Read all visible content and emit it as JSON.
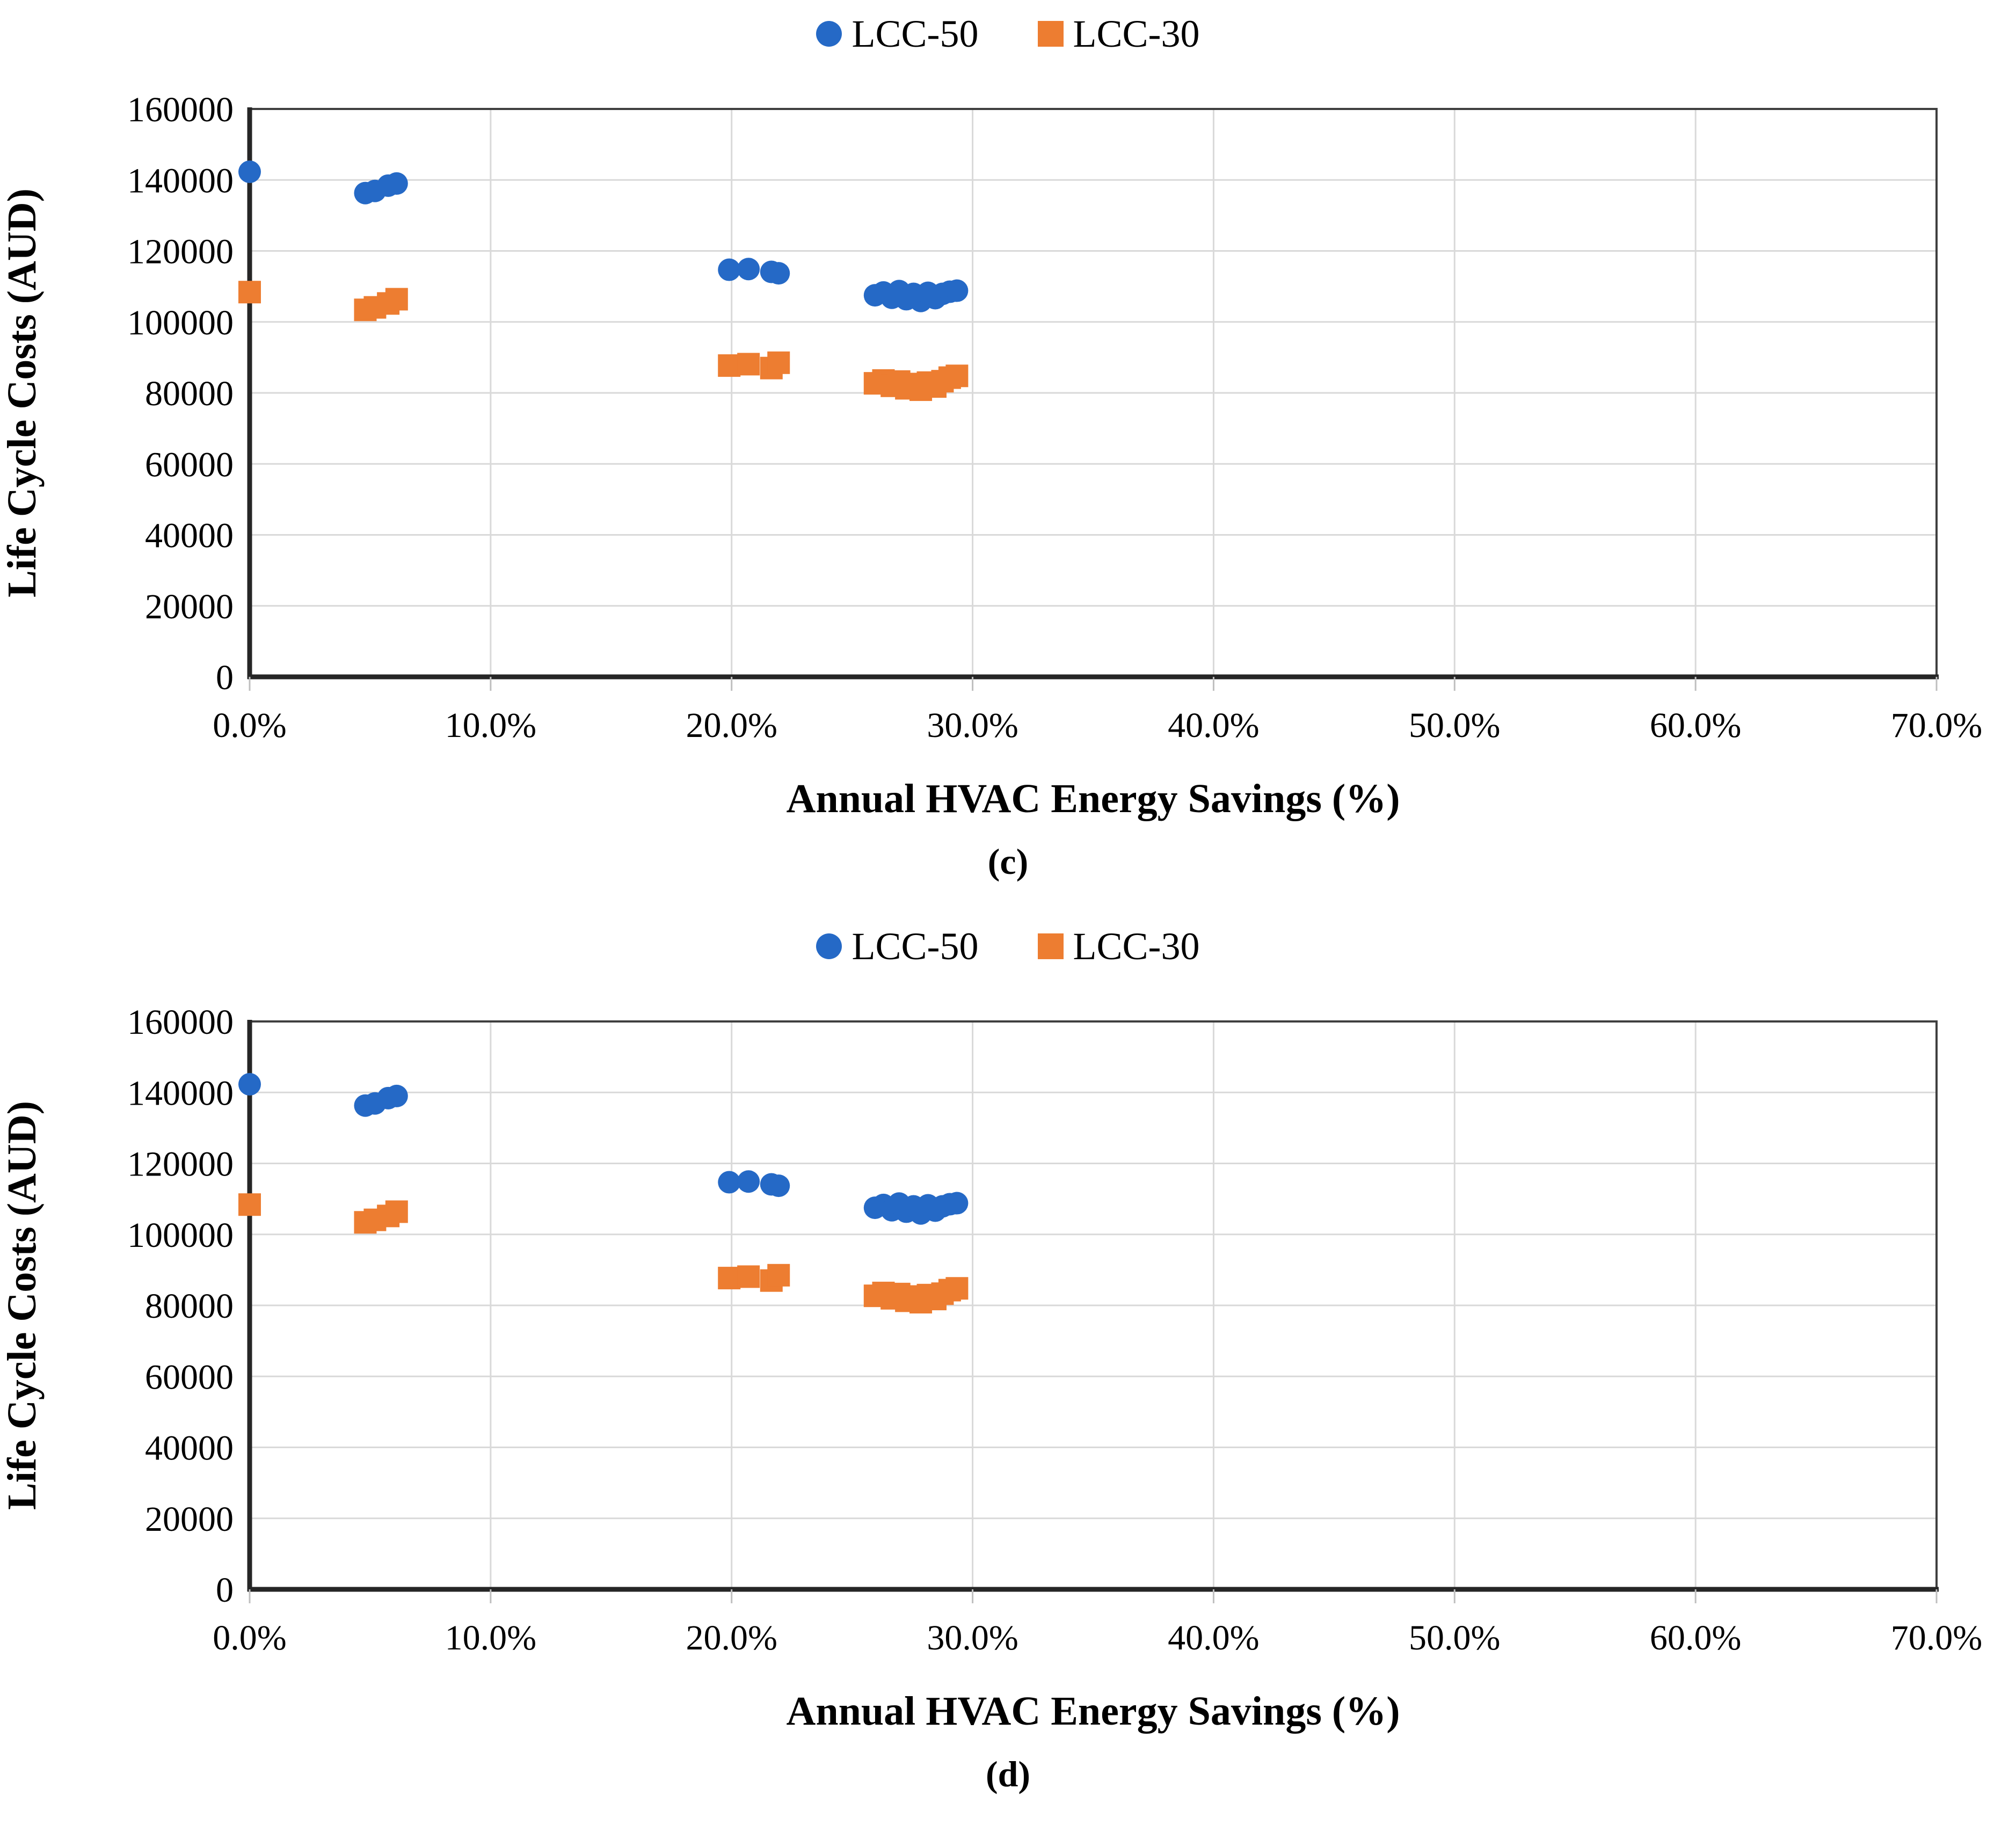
{
  "figures": [
    {
      "caption": "(c)"
    },
    {
      "caption": "(d)"
    }
  ],
  "chart_data": [
    {
      "type": "scatter",
      "title": "",
      "xlabel": "Annual HVAC Energy Savings (%)",
      "ylabel": "Life Cycle Costs (AUD)",
      "xlim_percent": [
        0,
        70
      ],
      "ylim": [
        0,
        160000
      ],
      "xticks_percent": [
        0,
        10,
        20,
        30,
        40,
        50,
        60,
        70
      ],
      "xtick_labels": [
        "0.0%",
        "10.0%",
        "20.0%",
        "30.0%",
        "40.0%",
        "50.0%",
        "60.0%",
        "70.0%"
      ],
      "yticks": [
        0,
        20000,
        40000,
        60000,
        80000,
        100000,
        120000,
        140000,
        160000
      ],
      "ytick_labels": [
        "0",
        "20000",
        "40000",
        "60000",
        "80000",
        "100000",
        "120000",
        "140000",
        "160000"
      ],
      "grid": true,
      "legend_position": "top",
      "gridline_color": "#d9d9d9",
      "axis_color": "#262626",
      "series": [
        {
          "name": "LCC-50",
          "marker": "circle",
          "color": "#2569C6",
          "points": [
            [
              0.0,
              142300
            ],
            [
              4.8,
              136300
            ],
            [
              5.2,
              136900
            ],
            [
              5.75,
              138400
            ],
            [
              6.1,
              139000
            ],
            [
              19.9,
              114700
            ],
            [
              20.7,
              114900
            ],
            [
              21.65,
              114100
            ],
            [
              21.95,
              113700
            ],
            [
              25.95,
              107500
            ],
            [
              26.3,
              108300
            ],
            [
              26.65,
              106800
            ],
            [
              26.95,
              108700
            ],
            [
              27.25,
              106400
            ],
            [
              27.55,
              107900
            ],
            [
              27.85,
              105900
            ],
            [
              28.15,
              108200
            ],
            [
              28.45,
              106700
            ],
            [
              28.75,
              107900
            ],
            [
              29.05,
              108500
            ],
            [
              29.35,
              108800
            ]
          ]
        },
        {
          "name": "LCC-30",
          "marker": "square",
          "color": "#ED7D31",
          "points": [
            [
              0.0,
              108400
            ],
            [
              4.8,
              103400
            ],
            [
              5.2,
              104100
            ],
            [
              5.75,
              105200
            ],
            [
              6.1,
              106400
            ],
            [
              19.9,
              87700
            ],
            [
              20.7,
              88100
            ],
            [
              21.65,
              87000
            ],
            [
              21.95,
              88500
            ],
            [
              25.95,
              82700
            ],
            [
              26.3,
              83500
            ],
            [
              26.65,
              82000
            ],
            [
              26.95,
              83200
            ],
            [
              27.25,
              81300
            ],
            [
              27.55,
              82500
            ],
            [
              27.85,
              80900
            ],
            [
              28.15,
              82900
            ],
            [
              28.45,
              81800
            ],
            [
              28.75,
              83300
            ],
            [
              29.05,
              84300
            ],
            [
              29.35,
              84800
            ]
          ]
        }
      ]
    },
    {
      "type": "scatter",
      "title": "",
      "xlabel": "Annual HVAC Energy Savings (%)",
      "ylabel": "Life Cycle Costs (AUD)",
      "xlim_percent": [
        0,
        70
      ],
      "ylim": [
        0,
        160000
      ],
      "xticks_percent": [
        0,
        10,
        20,
        30,
        40,
        50,
        60,
        70
      ],
      "xtick_labels": [
        "0.0%",
        "10.0%",
        "20.0%",
        "30.0%",
        "40.0%",
        "50.0%",
        "60.0%",
        "70.0%"
      ],
      "yticks": [
        0,
        20000,
        40000,
        60000,
        80000,
        100000,
        120000,
        140000,
        160000
      ],
      "ytick_labels": [
        "0",
        "20000",
        "40000",
        "60000",
        "80000",
        "100000",
        "120000",
        "140000",
        "160000"
      ],
      "grid": true,
      "legend_position": "top",
      "gridline_color": "#d9d9d9",
      "axis_color": "#262626",
      "series": [
        {
          "name": "LCC-50",
          "marker": "circle",
          "color": "#2569C6",
          "points": [
            [
              0.0,
              142300
            ],
            [
              4.8,
              136300
            ],
            [
              5.2,
              136900
            ],
            [
              5.75,
              138400
            ],
            [
              6.1,
              139000
            ],
            [
              19.9,
              114700
            ],
            [
              20.7,
              114900
            ],
            [
              21.65,
              114100
            ],
            [
              21.95,
              113700
            ],
            [
              25.95,
              107500
            ],
            [
              26.3,
              108300
            ],
            [
              26.65,
              106800
            ],
            [
              26.95,
              108700
            ],
            [
              27.25,
              106400
            ],
            [
              27.55,
              107900
            ],
            [
              27.85,
              105900
            ],
            [
              28.15,
              108200
            ],
            [
              28.45,
              106700
            ],
            [
              28.75,
              107900
            ],
            [
              29.05,
              108500
            ],
            [
              29.35,
              108800
            ]
          ]
        },
        {
          "name": "LCC-30",
          "marker": "square",
          "color": "#ED7D31",
          "points": [
            [
              0.0,
              108400
            ],
            [
              4.8,
              103400
            ],
            [
              5.2,
              104100
            ],
            [
              5.75,
              105200
            ],
            [
              6.1,
              106400
            ],
            [
              19.9,
              87700
            ],
            [
              20.7,
              88100
            ],
            [
              21.65,
              87000
            ],
            [
              21.95,
              88500
            ],
            [
              25.95,
              82700
            ],
            [
              26.3,
              83500
            ],
            [
              26.65,
              82000
            ],
            [
              26.95,
              83200
            ],
            [
              27.25,
              81300
            ],
            [
              27.55,
              82500
            ],
            [
              27.85,
              80900
            ],
            [
              28.15,
              82900
            ],
            [
              28.45,
              81800
            ],
            [
              28.75,
              83300
            ],
            [
              29.05,
              84300
            ],
            [
              29.35,
              84800
            ]
          ]
        }
      ]
    }
  ]
}
